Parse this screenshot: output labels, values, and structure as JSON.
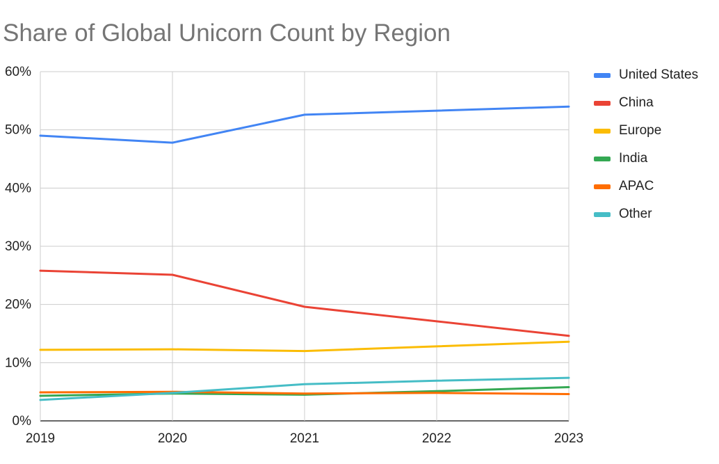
{
  "chart_data": {
    "type": "line",
    "title": "Share of Global Unicorn Count by Region",
    "xlabel": "",
    "ylabel": "",
    "categories": [
      "2019",
      "2020",
      "2021",
      "2022",
      "2023"
    ],
    "y_ticks": [
      "0%",
      "10%",
      "20%",
      "30%",
      "40%",
      "50%",
      "60%"
    ],
    "ylim": [
      0,
      60
    ],
    "grid": true,
    "legend_position": "right",
    "series": [
      {
        "name": "United States",
        "color": "#4285f4",
        "values": [
          49.0,
          47.8,
          52.6,
          53.3,
          54.0
        ]
      },
      {
        "name": "China",
        "color": "#ea4335",
        "values": [
          25.8,
          25.1,
          19.6,
          17.1,
          14.6
        ]
      },
      {
        "name": "Europe",
        "color": "#fbbc04",
        "values": [
          12.2,
          12.3,
          12.0,
          12.8,
          13.6
        ]
      },
      {
        "name": "India",
        "color": "#34a853",
        "values": [
          4.3,
          4.7,
          4.5,
          5.1,
          5.8
        ]
      },
      {
        "name": "APAC",
        "color": "#ff6d01",
        "values": [
          4.9,
          5.0,
          4.7,
          4.8,
          4.6
        ]
      },
      {
        "name": "Other",
        "color": "#46bdc6",
        "values": [
          3.6,
          4.8,
          6.3,
          6.9,
          7.4
        ]
      }
    ]
  }
}
